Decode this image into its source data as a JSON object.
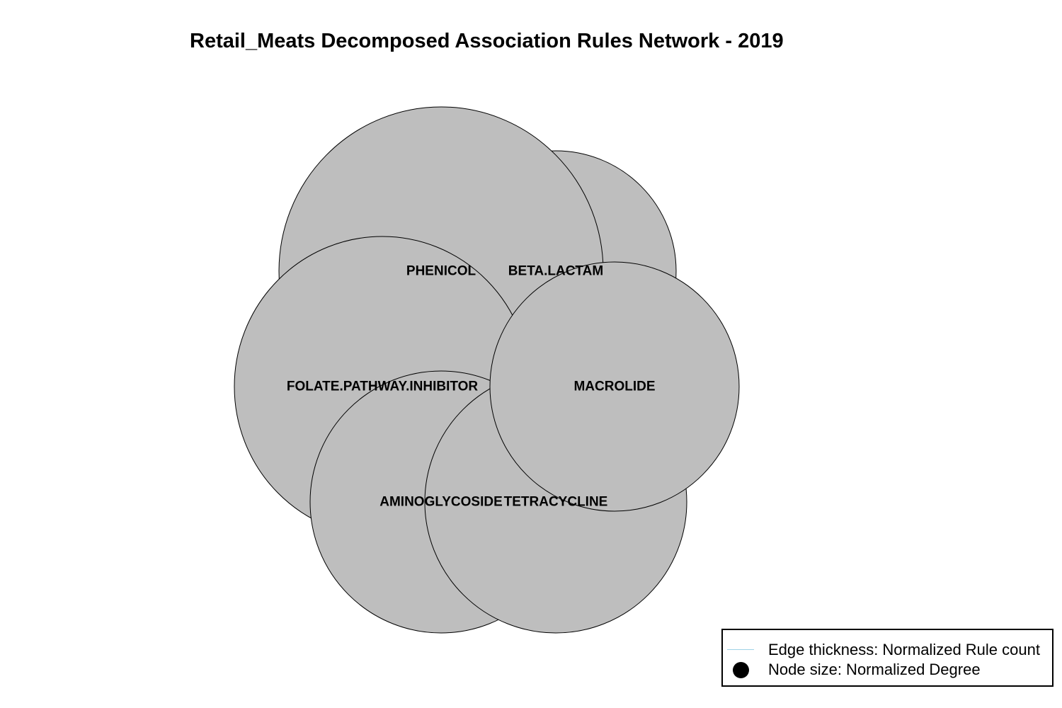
{
  "title": "Retail_Meats Decomposed Association Rules Network - 2019",
  "nodes": [
    {
      "id": "phenicol",
      "label": "PHENICOL"
    },
    {
      "id": "beta-lactam",
      "label": "BETA.LACTAM"
    },
    {
      "id": "folate-pathway-inhibitor",
      "label": "FOLATE.PATHWAY.INHIBITOR"
    },
    {
      "id": "macrolide",
      "label": "MACROLIDE"
    },
    {
      "id": "aminoglycoside",
      "label": "AMINOGLYCOSIDE"
    },
    {
      "id": "tetracycline",
      "label": "TETRACYCLINE"
    }
  ],
  "node_fill": "#bebebe",
  "legend": {
    "edge_label": "Edge thickness: Normalized Rule count",
    "node_label": "Node size: Normalized Degree",
    "edge_color": "#9fd3e6",
    "node_color": "#000000"
  }
}
